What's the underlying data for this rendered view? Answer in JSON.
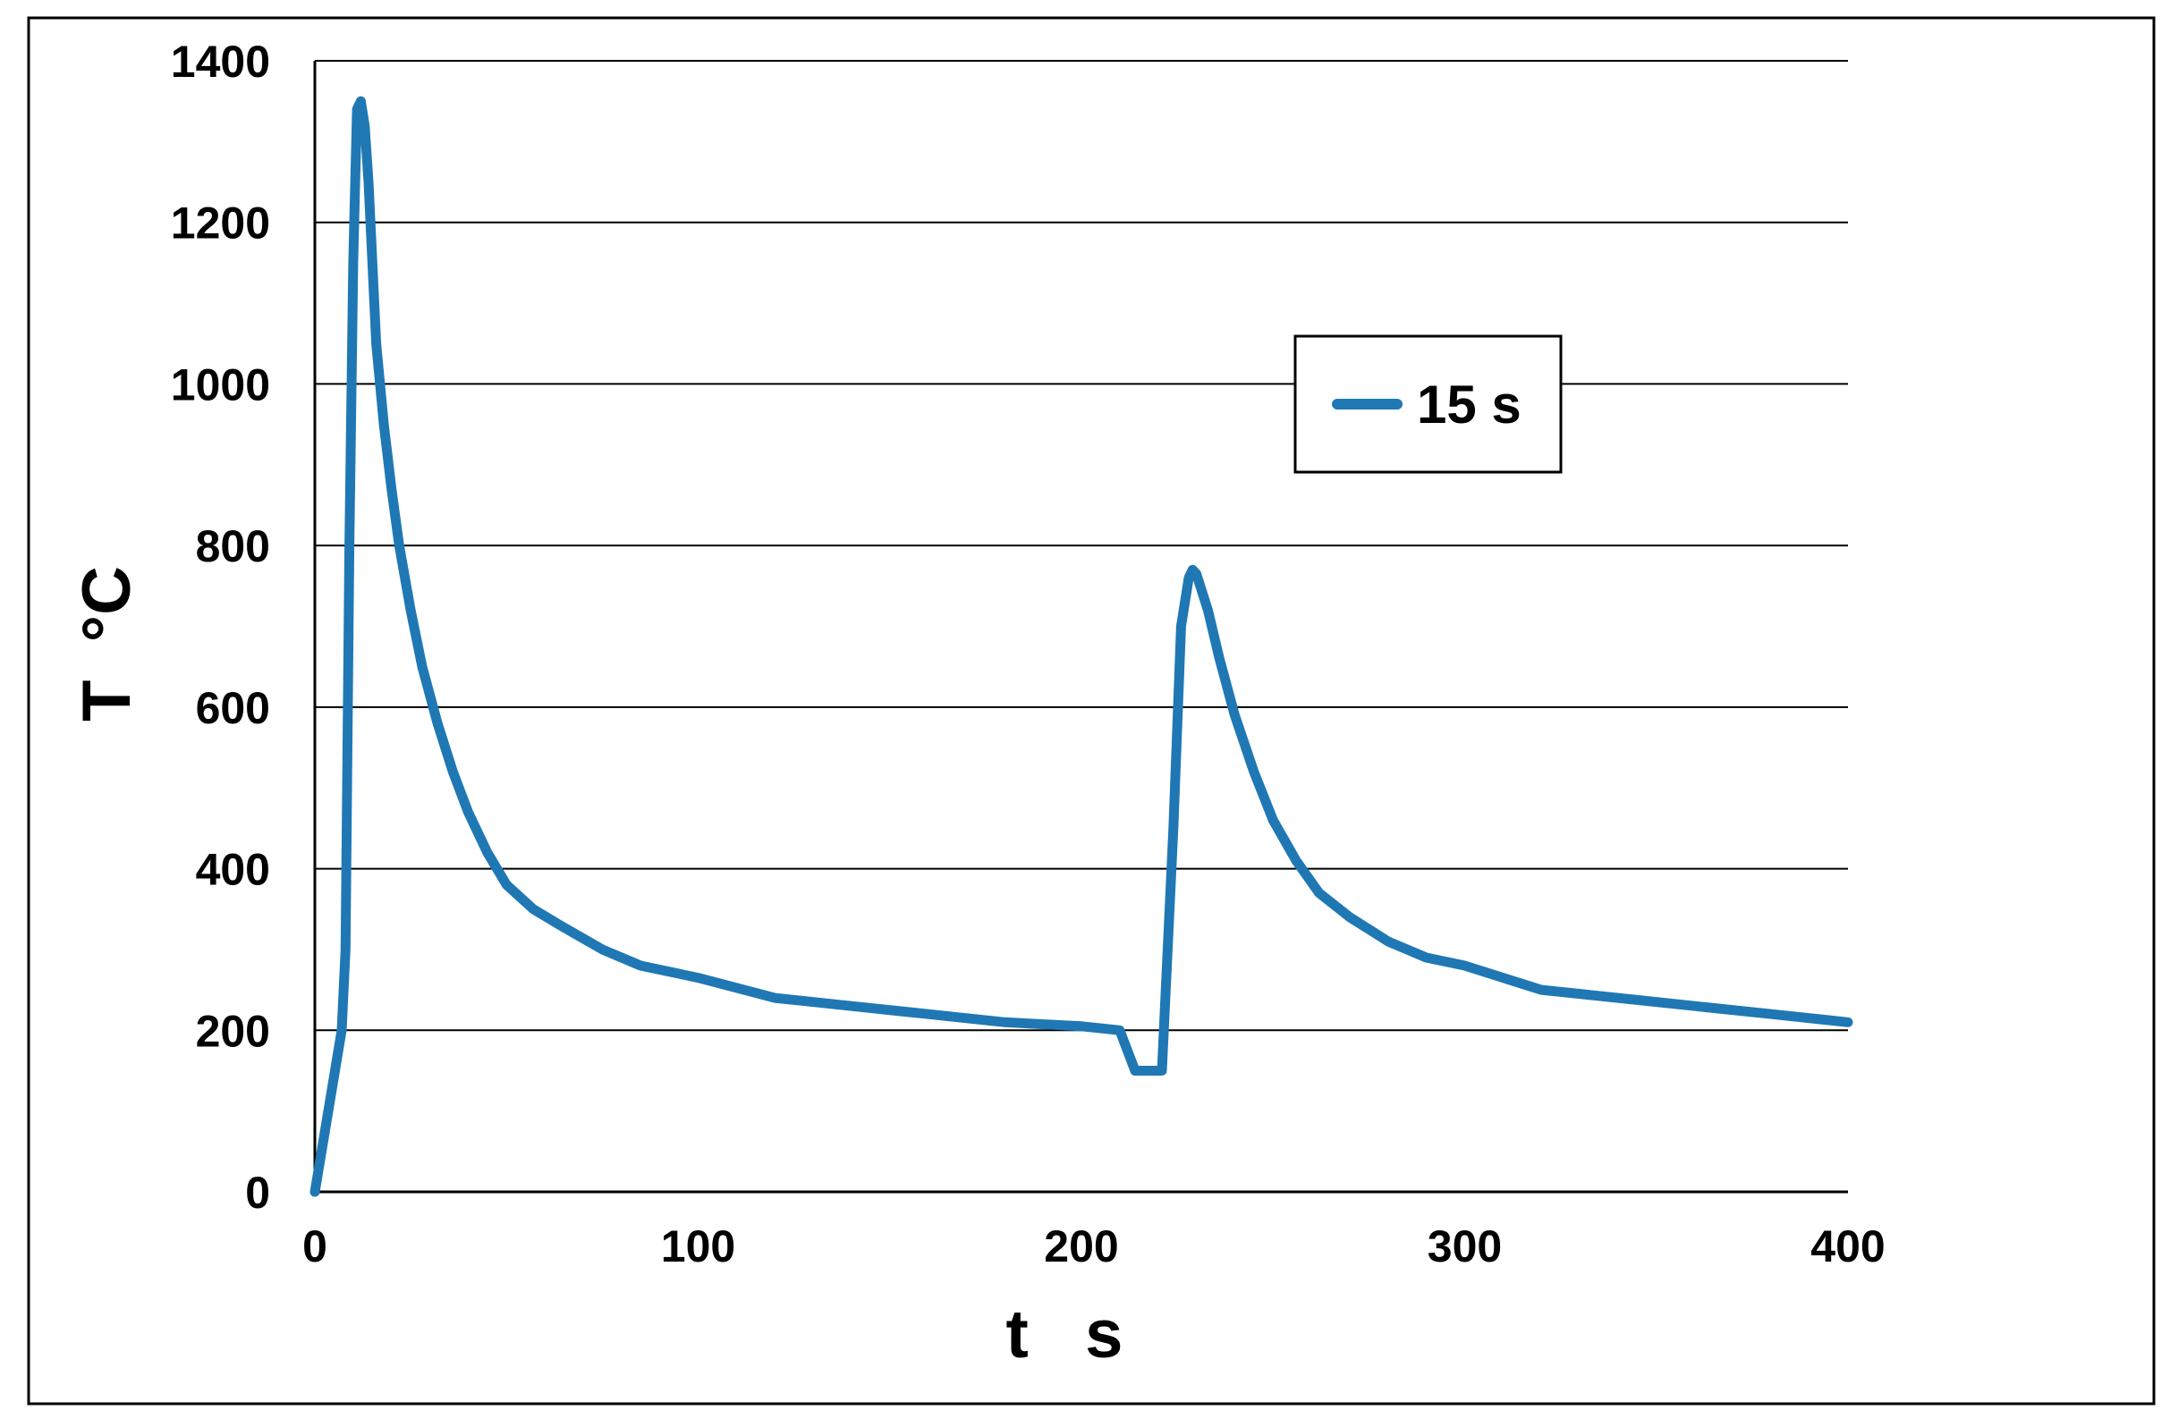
{
  "chart_data": {
    "type": "line",
    "xlabel": "t   s",
    "ylabel": "T  °C",
    "xlim": [
      0,
      400
    ],
    "ylim": [
      0,
      1400
    ],
    "x_ticks": [
      0,
      100,
      200,
      300,
      400
    ],
    "y_ticks": [
      0,
      200,
      400,
      600,
      800,
      1000,
      1200,
      1400
    ],
    "x_tick_labels": [
      "0",
      "100",
      "200",
      "300",
      "400"
    ],
    "y_tick_labels": [
      "0",
      "200",
      "400",
      "600",
      "800",
      "1000",
      "1200",
      "1400"
    ],
    "grid": "horizontal",
    "legend_position": "upper-right",
    "colors": {
      "series": "#1f78b4",
      "grid": "#000000",
      "frame": "#000000"
    },
    "series": [
      {
        "name": "15 s",
        "x": [
          0,
          7,
          8,
          9,
          10,
          11,
          12,
          13,
          14,
          16,
          18,
          20,
          22,
          25,
          28,
          32,
          36,
          40,
          45,
          50,
          57,
          64,
          75,
          85,
          100,
          120,
          140,
          160,
          180,
          200,
          210,
          214,
          221,
          224,
          226,
          228,
          229,
          230,
          231,
          233,
          236,
          240,
          245,
          250,
          256,
          262,
          270,
          280,
          290,
          300,
          310,
          320,
          340,
          360,
          380,
          400
        ],
        "y": [
          0,
          200,
          300,
          800,
          1150,
          1340,
          1350,
          1320,
          1250,
          1050,
          950,
          870,
          800,
          720,
          650,
          580,
          520,
          470,
          420,
          380,
          350,
          330,
          300,
          280,
          265,
          240,
          230,
          220,
          210,
          205,
          200,
          150,
          150,
          450,
          700,
          760,
          770,
          765,
          750,
          720,
          660,
          590,
          520,
          460,
          410,
          370,
          340,
          310,
          290,
          280,
          265,
          250,
          240,
          230,
          220,
          210
        ]
      }
    ]
  }
}
